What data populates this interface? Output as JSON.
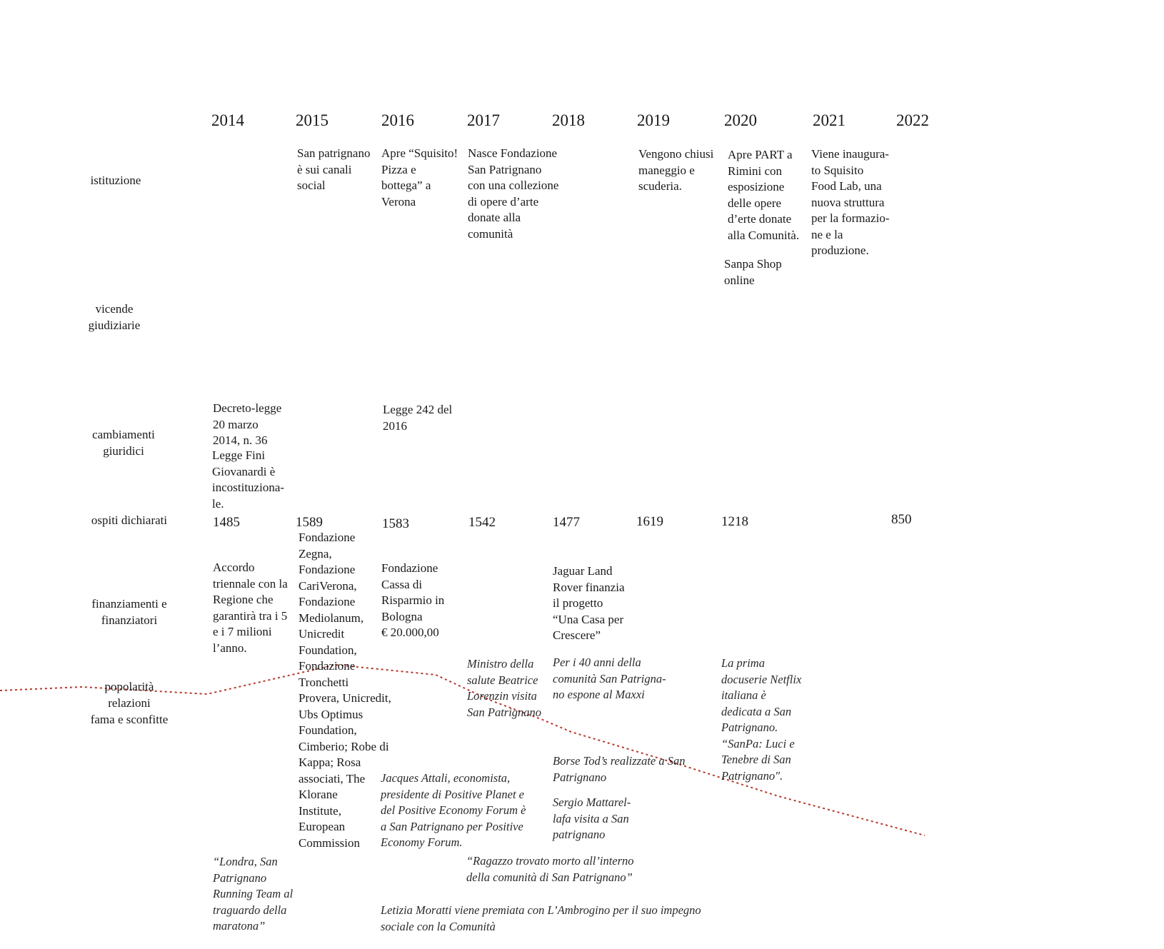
{
  "years": [
    "2014",
    "2015",
    "2016",
    "2017",
    "2018",
    "2019",
    "2020",
    "2021",
    "2022"
  ],
  "row_labels": {
    "istituzione": "istituzione",
    "vicende": "vicende\ngiudiziarie",
    "cambiamenti": "cambiamenti\ngiuridici",
    "ospiti": "ospiti dichiarati",
    "finanziamenti": "finanziamenti e\nfinanziatori",
    "popolarita": "popolarità\nrelazioni\nfama e sconfitte"
  },
  "istituzione": {
    "y2015": "San patrignano\nè sui canali\nsocial",
    "y2016": "Apre “Squisito!\nPizza e\nbottega” a\nVerona",
    "y2017": "Nasce Fondazione\nSan Patrignano\ncon una collezione\ndi opere d’arte\ndonate alla\ncomunità",
    "y2019": "Vengono chiusi\nmaneggio e\nscuderia.",
    "y2020a": "Apre PART a\nRimini con\nesposizione\ndelle opere\nd’erte donate\nalla Comunità.",
    "y2020b": "Sanpa Shop\nonline",
    "y2021": "Viene inaugura-\nto Squisito\nFood Lab, una\nnuova struttura\nper la formazio-\nne e la\nproduzione."
  },
  "cambiamenti": {
    "y2014a": "Decreto-legge\n20 marzo\n2014, n. 36",
    "y2014b": "Legge Fini\nGiovanardi è\nincostituziona-\nle.",
    "y2016": "Legge 242 del\n2016"
  },
  "ospiti": {
    "y2014": "1485",
    "y2015": "1589",
    "y2016": "1583",
    "y2017": "1542",
    "y2018": "1477",
    "y2019": "1619",
    "y2020": "1218",
    "y2022": "850"
  },
  "finanziamenti": {
    "y2014": "Accordo\ntriennale con la\nRegione che\ngarantirà tra i 5\ne i 7 milioni\nl’anno.",
    "y2015": "Fondazione\nZegna,\nFondazione\nCariVerona,\nFondazione\nMediolanum,\nUnicredit\nFoundation,\nFondazione\nTronchetti\nProvera, Unicredit,\nUbs Optimus\nFoundation,\nCimberio; Robe di\nKappa; Rosa\nassociati, The\nKlorane\nInstitute,\nEuropean\nCommission",
    "y2016": "Fondazione\nCassa di\nRisparmio in\nBologna\n€ 20.000,00",
    "y2018": "Jaguar Land\nRover finanzia\nil progetto\n“Una Casa per\nCrescere”"
  },
  "popolarita": {
    "y2014": "“Londra, San\nPatrignano\nRunning Team al\ntraguardo della\nmaratona”",
    "y2016a": "Jacques Attali, economista,\npresidente di Positive Planet e\ndel Positive Economy Forum  è\na San Patrignano per Positive\nEconomy Forum.",
    "y2016b": "Letizia Moratti viene premiata con L’Ambrogino per il suo impegno\nsociale con la Comunità",
    "y2017a": "Ministro della\nsalute Beatrice\nLorenzin visita\nSan Patrignano",
    "y2017b": "“Ragazzo trovato morto all’interno\ndella comunità di San Patrignano”",
    "y2018a": "Per i 40 anni della\ncomunità San Patrigna-\nno espone al Maxxi",
    "y2018b": "Borse Tod’s realizzate a San\nPatrignano",
    "y2018c": "Sergio Mattarel-\nlafa visita a San\npatrignano",
    "y2020": "La prima\ndocuserie Netflix\nitaliana è\ndedicata a San\nPatrignano.\n“SanPa: Luci e\nTenebre di San\nPatrignano\"."
  },
  "colors": {
    "trend": "#b5392a",
    "text": "#1a1a1a"
  }
}
